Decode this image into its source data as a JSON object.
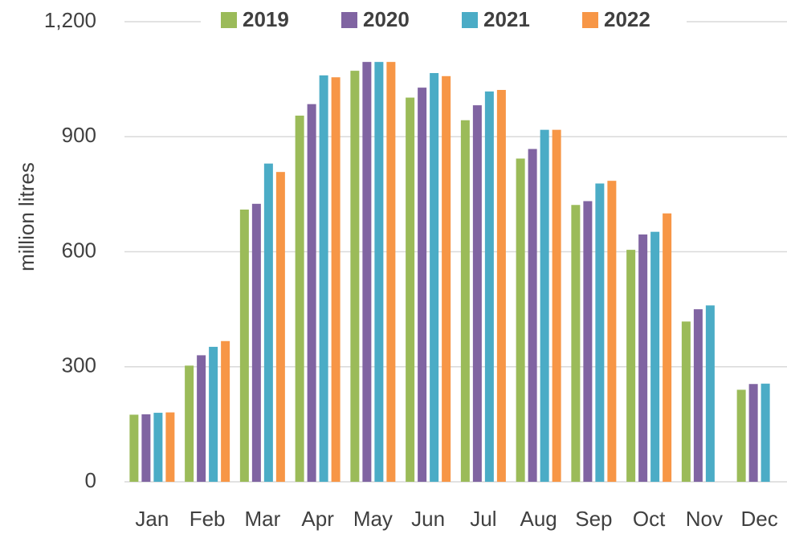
{
  "chart_data": {
    "type": "bar",
    "y_label": "million litres",
    "categories": [
      "Jan",
      "Feb",
      "Mar",
      "Apr",
      "May",
      "Jun",
      "Jul",
      "Aug",
      "Sep",
      "Oct",
      "Nov",
      "Dec"
    ],
    "series": [
      {
        "name": "2019",
        "color": "#9bbb59",
        "values": [
          175,
          303,
          710,
          955,
          1072,
          1002,
          943,
          843,
          722,
          605,
          418,
          240
        ]
      },
      {
        "name": "2020",
        "color": "#8064a2",
        "values": [
          176,
          330,
          725,
          985,
          1095,
          1028,
          982,
          868,
          732,
          645,
          450,
          255
        ]
      },
      {
        "name": "2021",
        "color": "#4bacc6",
        "values": [
          180,
          352,
          830,
          1060,
          1095,
          1066,
          1018,
          918,
          778,
          652,
          460,
          256
        ]
      },
      {
        "name": "2022",
        "color": "#f79646",
        "values": [
          181,
          367,
          808,
          1055,
          1095,
          1058,
          1022,
          918,
          785,
          700,
          null,
          null
        ]
      }
    ],
    "ylim": [
      0,
      1200
    ],
    "yticks": [
      0,
      300,
      600,
      900,
      {
        "value": 1200,
        "label": "1,200"
      }
    ],
    "grid": true,
    "legend": "top"
  }
}
